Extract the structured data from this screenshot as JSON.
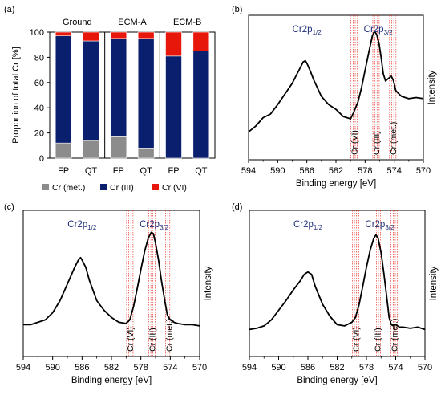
{
  "colors": {
    "met": "#8c8c8c",
    "iii": "#0a1f6e",
    "vi": "#e8170c",
    "line": "#000000",
    "ref": "#e8170c",
    "peak_label": "#1f2f7a"
  },
  "chart_data": [
    {
      "panel_label": "(a)",
      "type": "bar",
      "stacked": true,
      "groups": [
        "Ground",
        "ECM-A",
        "ECM-B"
      ],
      "categories": [
        "FP",
        "QT",
        "FP",
        "QT",
        "FP",
        "QT"
      ],
      "ylabel": "Proportion of total Cr [%]",
      "ylim": [
        0,
        100
      ],
      "yticks": [
        "0",
        "20",
        "40",
        "60",
        "80",
        "100"
      ],
      "series": [
        {
          "name": "Cr (met.)",
          "color_key": "met",
          "values": [
            12,
            14,
            17,
            8,
            0,
            0
          ]
        },
        {
          "name": "Cr (III)",
          "color_key": "iii",
          "values": [
            85,
            79,
            78,
            87,
            81,
            85
          ]
        },
        {
          "name": "Cr (VI)",
          "color_key": "vi",
          "values": [
            3,
            7,
            5,
            5,
            19,
            15
          ]
        }
      ],
      "legend_position": "bottom"
    },
    {
      "panel_label": "(b)",
      "type": "line",
      "xlabel": "Binding energy [eV]",
      "ylabel": "Intensity",
      "xlim": [
        594,
        570
      ],
      "xticks": [
        "594",
        "590",
        "586",
        "582",
        "578",
        "574",
        "570"
      ],
      "peak_labels": [
        {
          "base": "Cr2p",
          "sub": "1/2",
          "x": 586.0
        },
        {
          "base": "Cr2p",
          "sub": "3/2",
          "x": 576.2
        }
      ],
      "reference_lines": [
        {
          "label": "Cr (VI)",
          "x": 579.5
        },
        {
          "label": "Cr (III)",
          "x": 576.5
        },
        {
          "label": "Cr (met.)",
          "x": 574.2
        }
      ],
      "x": [
        594.0,
        593.0,
        592.0,
        591.0,
        590.0,
        589.0,
        588.0,
        587.5,
        587.0,
        586.5,
        586.2,
        586.0,
        585.5,
        585.0,
        584.0,
        583.0,
        582.0,
        581.0,
        580.0,
        579.6,
        579.0,
        578.5,
        578.0,
        577.5,
        577.0,
        576.7,
        576.4,
        576.1,
        575.8,
        575.5,
        575.2,
        574.8,
        574.4,
        574.1,
        573.8,
        573.5,
        573.0,
        572.0,
        571.0,
        570.0
      ],
      "y": [
        0.15,
        0.2,
        0.27,
        0.3,
        0.38,
        0.47,
        0.56,
        0.62,
        0.68,
        0.74,
        0.75,
        0.73,
        0.66,
        0.58,
        0.45,
        0.38,
        0.34,
        0.28,
        0.26,
        0.31,
        0.4,
        0.52,
        0.67,
        0.82,
        0.96,
        1.0,
        0.97,
        0.9,
        0.78,
        0.64,
        0.58,
        0.6,
        0.62,
        0.58,
        0.5,
        0.48,
        0.45,
        0.43,
        0.44,
        0.43
      ]
    },
    {
      "panel_label": "(c)",
      "type": "line",
      "xlabel": "Binding energy [eV]",
      "ylabel": "Intensity",
      "xlim": [
        594,
        570
      ],
      "xticks": [
        "594",
        "590",
        "586",
        "582",
        "578",
        "574",
        "570"
      ],
      "peak_labels": [
        {
          "base": "Cr2p",
          "sub": "1/2",
          "x": 586.0
        },
        {
          "base": "Cr2p",
          "sub": "3/2",
          "x": 576.2
        }
      ],
      "reference_lines": [
        {
          "label": "Cr (VI)",
          "x": 579.5
        },
        {
          "label": "Cr (III)",
          "x": 576.5
        },
        {
          "label": "Cr (met.)",
          "x": 574.2
        }
      ],
      "x": [
        594.0,
        593.0,
        592.0,
        591.0,
        590.0,
        589.0,
        588.0,
        587.0,
        586.5,
        586.2,
        586.0,
        585.5,
        585.0,
        584.0,
        583.0,
        582.0,
        581.0,
        580.0,
        579.5,
        579.0,
        578.5,
        578.0,
        577.5,
        577.0,
        576.6,
        576.3,
        576.0,
        575.6,
        575.2,
        574.8,
        574.4,
        574.0,
        573.5,
        573.0,
        572.0,
        571.0,
        570.0
      ],
      "y": [
        0.18,
        0.18,
        0.2,
        0.22,
        0.28,
        0.38,
        0.52,
        0.66,
        0.72,
        0.74,
        0.72,
        0.66,
        0.55,
        0.38,
        0.3,
        0.24,
        0.2,
        0.19,
        0.22,
        0.33,
        0.48,
        0.64,
        0.79,
        0.9,
        0.95,
        0.94,
        0.86,
        0.72,
        0.55,
        0.4,
        0.26,
        0.22,
        0.2,
        0.19,
        0.18,
        0.18,
        0.17
      ]
    },
    {
      "panel_label": "(d)",
      "type": "line",
      "xlabel": "Binding energy [eV]",
      "ylabel": "Intensity",
      "xlim": [
        594,
        570
      ],
      "xticks": [
        "594",
        "590",
        "586",
        "582",
        "578",
        "574",
        "570"
      ],
      "peak_labels": [
        {
          "base": "Cr2p",
          "sub": "1/2",
          "x": 586.0
        },
        {
          "base": "Cr2p",
          "sub": "3/2",
          "x": 576.2
        }
      ],
      "reference_lines": [
        {
          "label": "Cr (VI)",
          "x": 579.5
        },
        {
          "label": "Cr (III)",
          "x": 576.5
        },
        {
          "label": "Cr (met.)",
          "x": 574.2
        }
      ],
      "x": [
        594.0,
        593.0,
        592.0,
        591.0,
        590.0,
        589.0,
        588.0,
        587.0,
        586.5,
        586.0,
        585.5,
        585.0,
        584.0,
        583.0,
        582.0,
        581.0,
        580.0,
        579.5,
        579.0,
        578.5,
        578.0,
        577.5,
        577.0,
        576.7,
        576.4,
        576.0,
        575.6,
        575.2,
        574.9,
        574.6,
        574.3,
        574.0,
        573.5,
        573.0,
        572.0,
        571.0,
        570.0
      ],
      "y": [
        0.14,
        0.15,
        0.17,
        0.22,
        0.3,
        0.38,
        0.47,
        0.55,
        0.6,
        0.62,
        0.6,
        0.5,
        0.35,
        0.25,
        0.18,
        0.17,
        0.2,
        0.24,
        0.35,
        0.5,
        0.66,
        0.8,
        0.9,
        0.93,
        0.9,
        0.78,
        0.6,
        0.4,
        0.24,
        0.18,
        0.17,
        0.18,
        0.16,
        0.16,
        0.15,
        0.16,
        0.14
      ]
    }
  ]
}
